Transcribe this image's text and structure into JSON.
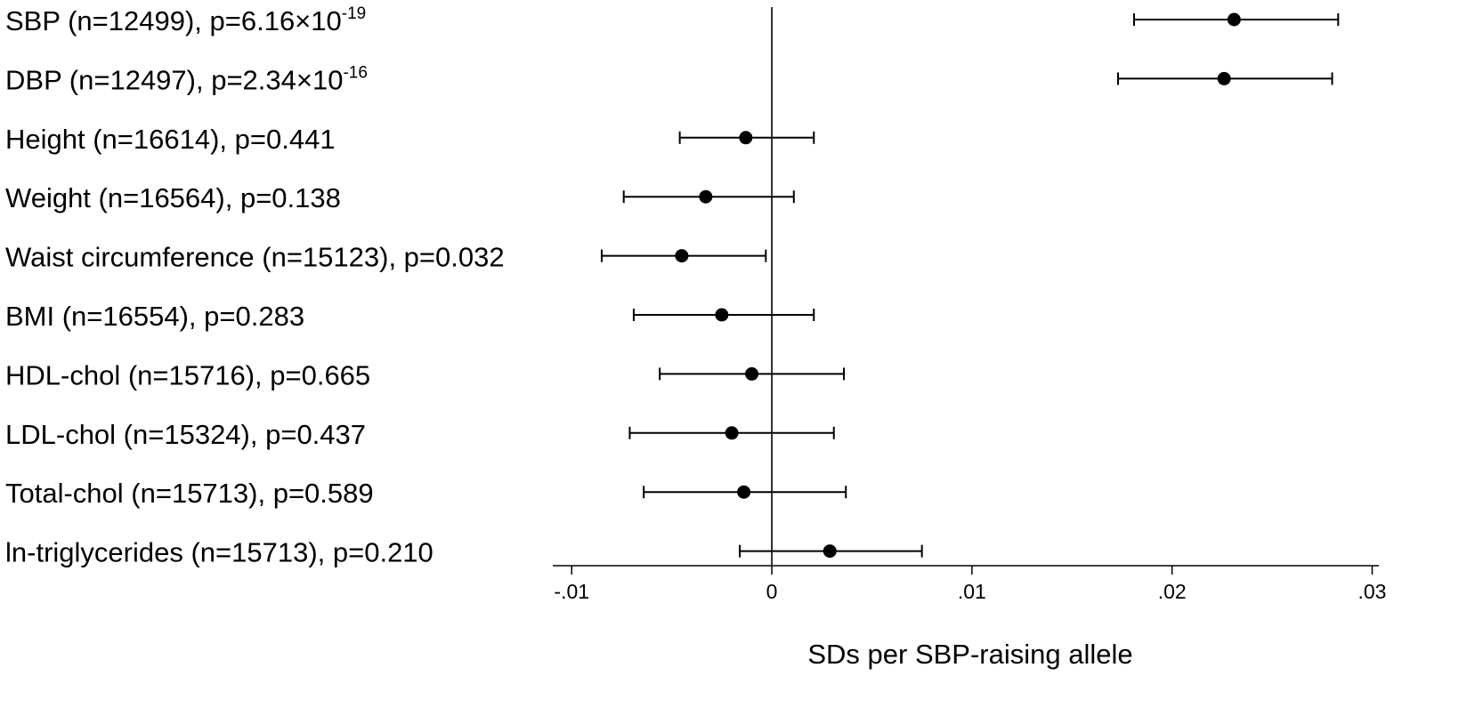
{
  "chart_data": {
    "type": "forest",
    "xlabel": "SDs per SBP-raising allele",
    "xlim": [
      -0.0105,
      0.0302
    ],
    "x_ticks": [
      {
        "value": -0.01,
        "label": "-.01"
      },
      {
        "value": 0,
        "label": "0"
      },
      {
        "value": 0.01,
        "label": ".01"
      },
      {
        "value": 0.02,
        "label": ".02"
      },
      {
        "value": 0.03,
        "label": ".03"
      }
    ],
    "reference_line": 0,
    "rows": [
      {
        "label": "SBP (n=12499), p=6.16×10",
        "sup": "-19",
        "estimate": 0.0231,
        "ci_low": 0.0181,
        "ci_high": 0.0283
      },
      {
        "label": "DBP (n=12497), p=2.34×10",
        "sup": "-16",
        "estimate": 0.0226,
        "ci_low": 0.0173,
        "ci_high": 0.028
      },
      {
        "label": "Height (n=16614), p=0.441",
        "sup": "",
        "estimate": -0.0013,
        "ci_low": -0.0046,
        "ci_high": 0.0021
      },
      {
        "label": "Weight (n=16564), p=0.138",
        "sup": "",
        "estimate": -0.0033,
        "ci_low": -0.0074,
        "ci_high": 0.0011
      },
      {
        "label": "Waist circumference (n=15123), p=0.032",
        "sup": "",
        "estimate": -0.0045,
        "ci_low": -0.0085,
        "ci_high": -0.0003
      },
      {
        "label": "BMI (n=16554), p=0.283",
        "sup": "",
        "estimate": -0.0025,
        "ci_low": -0.0069,
        "ci_high": 0.0021
      },
      {
        "label": "HDL-chol (n=15716), p=0.665",
        "sup": "",
        "estimate": -0.001,
        "ci_low": -0.0056,
        "ci_high": 0.0036
      },
      {
        "label": "LDL-chol (n=15324), p=0.437",
        "sup": "",
        "estimate": -0.002,
        "ci_low": -0.0071,
        "ci_high": 0.0031
      },
      {
        "label": "Total-chol (n=15713), p=0.589",
        "sup": "",
        "estimate": -0.0014,
        "ci_low": -0.0064,
        "ci_high": 0.0037
      },
      {
        "label": "ln-triglycerides (n=15713), p=0.210",
        "sup": "",
        "estimate": 0.0029,
        "ci_low": -0.0016,
        "ci_high": 0.0075
      }
    ]
  }
}
